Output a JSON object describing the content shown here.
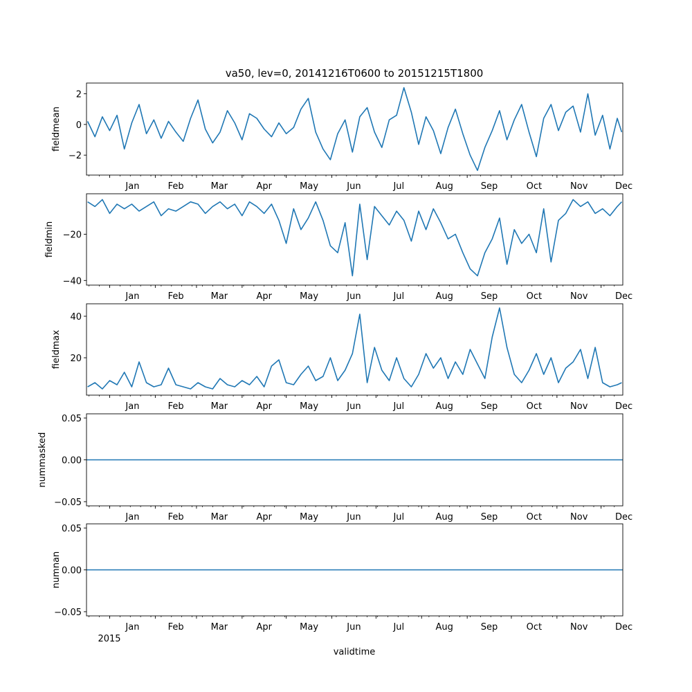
{
  "figure": {
    "title": "va50, lev=0, 20141216T0600 to 20151215T1800",
    "xlabel": "validtime",
    "year_label": "2015",
    "series_color": "#1f77b4"
  },
  "chart_data": [
    {
      "type": "line",
      "ylabel": "fieldmean",
      "ylim": [
        -3.3,
        2.7
      ],
      "yticks": [
        -2,
        0,
        2
      ],
      "ytick_labels": [
        "−2",
        "0",
        "2"
      ],
      "x_range_days": [
        -15.75,
        348.75
      ],
      "x_unit": "days since 2015-01-01",
      "month_labels": [
        "Jan",
        "Feb",
        "Mar",
        "Apr",
        "May",
        "Jun",
        "Jul",
        "Aug",
        "Sep",
        "Oct",
        "Nov",
        "Dec"
      ],
      "x": [
        -15,
        -10,
        -5,
        0,
        5,
        10,
        15,
        20,
        25,
        30,
        35,
        40,
        45,
        50,
        55,
        60,
        65,
        70,
        75,
        80,
        85,
        90,
        95,
        100,
        105,
        110,
        115,
        120,
        125,
        130,
        135,
        140,
        145,
        150,
        155,
        160,
        165,
        170,
        175,
        180,
        185,
        190,
        195,
        200,
        205,
        210,
        215,
        220,
        225,
        230,
        235,
        240,
        245,
        250,
        255,
        260,
        265,
        270,
        275,
        280,
        285,
        290,
        295,
        300,
        305,
        310,
        315,
        320,
        325,
        330,
        335,
        340,
        345,
        348
      ],
      "values": [
        0.2,
        -0.8,
        0.5,
        -0.4,
        0.6,
        -1.6,
        0.1,
        1.3,
        -0.6,
        0.3,
        -0.9,
        0.2,
        -0.5,
        -1.1,
        0.4,
        1.6,
        -0.3,
        -1.2,
        -0.5,
        0.9,
        0.1,
        -1.0,
        0.7,
        0.4,
        -0.3,
        -0.8,
        0.1,
        -0.6,
        -0.2,
        1.0,
        1.7,
        -0.5,
        -1.6,
        -2.3,
        -0.6,
        0.3,
        -1.8,
        0.5,
        1.1,
        -0.5,
        -1.5,
        0.3,
        0.6,
        2.4,
        0.8,
        -1.3,
        0.5,
        -0.4,
        -1.9,
        -0.2,
        1.0,
        -0.6,
        -2.0,
        -3.0,
        -1.5,
        -0.4,
        0.9,
        -1.0,
        0.3,
        1.3,
        -0.5,
        -2.1,
        0.4,
        1.3,
        -0.4,
        0.8,
        1.2,
        -0.5,
        2.0,
        -0.7,
        0.6,
        -1.6,
        0.4,
        -0.5
      ]
    },
    {
      "type": "line",
      "ylabel": "fieldmin",
      "ylim": [
        -42,
        -2.5
      ],
      "yticks": [
        -20,
        -40
      ],
      "ytick_labels": [
        "−20",
        "−40"
      ],
      "x_range_days": [
        -15.75,
        348.75
      ],
      "x_unit": "days since 2015-01-01",
      "month_labels": [
        "Jan",
        "Feb",
        "Mar",
        "Apr",
        "May",
        "Jun",
        "Jul",
        "Aug",
        "Sep",
        "Oct",
        "Nov",
        "Dec"
      ],
      "x": [
        -15,
        -10,
        -5,
        0,
        5,
        10,
        15,
        20,
        25,
        30,
        35,
        40,
        45,
        50,
        55,
        60,
        65,
        70,
        75,
        80,
        85,
        90,
        95,
        100,
        105,
        110,
        115,
        120,
        125,
        130,
        135,
        140,
        145,
        150,
        155,
        160,
        165,
        170,
        175,
        180,
        185,
        190,
        195,
        200,
        205,
        210,
        215,
        220,
        225,
        230,
        235,
        240,
        245,
        250,
        255,
        260,
        265,
        270,
        275,
        280,
        285,
        290,
        295,
        300,
        305,
        310,
        315,
        320,
        325,
        330,
        335,
        340,
        345,
        348
      ],
      "values": [
        -6,
        -8,
        -5,
        -11,
        -7,
        -9,
        -7,
        -10,
        -8,
        -6,
        -12,
        -9,
        -10,
        -8,
        -6,
        -7,
        -11,
        -8,
        -6,
        -9,
        -7,
        -12,
        -6,
        -8,
        -11,
        -7,
        -14,
        -24,
        -9,
        -18,
        -13,
        -6,
        -14,
        -25,
        -28,
        -15,
        -38,
        -7,
        -31,
        -8,
        -12,
        -16,
        -10,
        -14,
        -23,
        -10,
        -18,
        -9,
        -15,
        -22,
        -20,
        -28,
        -35,
        -38,
        -28,
        -22,
        -13,
        -33,
        -18,
        -24,
        -20,
        -28,
        -9,
        -32,
        -14,
        -11,
        -5,
        -8,
        -6,
        -11,
        -9,
        -12,
        -8,
        -6
      ]
    },
    {
      "type": "line",
      "ylabel": "fieldmax",
      "ylim": [
        2,
        46
      ],
      "yticks": [
        20,
        40
      ],
      "ytick_labels": [
        "20",
        "40"
      ],
      "x_range_days": [
        -15.75,
        348.75
      ],
      "x_unit": "days since 2015-01-01",
      "month_labels": [
        "Jan",
        "Feb",
        "Mar",
        "Apr",
        "May",
        "Jun",
        "Jul",
        "Aug",
        "Sep",
        "Oct",
        "Nov",
        "Dec"
      ],
      "x": [
        -15,
        -10,
        -5,
        0,
        5,
        10,
        15,
        20,
        25,
        30,
        35,
        40,
        45,
        50,
        55,
        60,
        65,
        70,
        75,
        80,
        85,
        90,
        95,
        100,
        105,
        110,
        115,
        120,
        125,
        130,
        135,
        140,
        145,
        150,
        155,
        160,
        165,
        170,
        175,
        180,
        185,
        190,
        195,
        200,
        205,
        210,
        215,
        220,
        225,
        230,
        235,
        240,
        245,
        250,
        255,
        260,
        265,
        270,
        275,
        280,
        285,
        290,
        295,
        300,
        305,
        310,
        315,
        320,
        325,
        330,
        335,
        340,
        345,
        348
      ],
      "values": [
        6,
        8,
        5,
        9,
        7,
        13,
        6,
        18,
        8,
        6,
        7,
        15,
        7,
        6,
        5,
        8,
        6,
        5,
        10,
        7,
        6,
        9,
        7,
        11,
        6,
        16,
        19,
        8,
        7,
        12,
        16,
        9,
        11,
        20,
        9,
        14,
        22,
        41,
        8,
        25,
        14,
        9,
        20,
        10,
        6,
        12,
        22,
        15,
        20,
        10,
        18,
        12,
        24,
        17,
        10,
        30,
        44,
        25,
        12,
        8,
        14,
        22,
        12,
        20,
        8,
        15,
        18,
        24,
        10,
        25,
        8,
        6,
        7,
        8
      ]
    },
    {
      "type": "line",
      "ylabel": "nummasked",
      "ylim": [
        -0.055,
        0.055
      ],
      "yticks": [
        0.05,
        0.0,
        -0.05
      ],
      "ytick_labels": [
        "0.05",
        "0.00",
        "−0.05"
      ],
      "x_range_days": [
        -15.75,
        348.75
      ],
      "x_unit": "days since 2015-01-01",
      "month_labels": [
        "Jan",
        "Feb",
        "Mar",
        "Apr",
        "May",
        "Jun",
        "Jul",
        "Aug",
        "Sep",
        "Oct",
        "Nov",
        "Dec"
      ],
      "x": [
        -15.75,
        348.75
      ],
      "values": [
        0,
        0
      ]
    },
    {
      "type": "line",
      "ylabel": "numnan",
      "ylim": [
        -0.055,
        0.055
      ],
      "yticks": [
        0.05,
        0.0,
        -0.05
      ],
      "ytick_labels": [
        "0.05",
        "0.00",
        "−0.05"
      ],
      "x_range_days": [
        -15.75,
        348.75
      ],
      "x_unit": "days since 2015-01-01",
      "month_labels": [
        "Jan",
        "Feb",
        "Mar",
        "Apr",
        "May",
        "Jun",
        "Jul",
        "Aug",
        "Sep",
        "Oct",
        "Nov",
        "Dec"
      ],
      "x": [
        -15.75,
        348.75
      ],
      "values": [
        0,
        0
      ]
    }
  ]
}
